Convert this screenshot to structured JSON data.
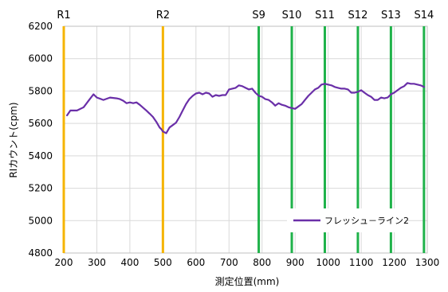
{
  "chart_data": {
    "type": "line",
    "xlabel": "測定位置(mm)",
    "ylabel": "RIカウント(cpm)",
    "xlim": [
      200,
      1300
    ],
    "ylim": [
      4800,
      6200
    ],
    "x_ticks": [
      "200",
      "300",
      "400",
      "500",
      "600",
      "700",
      "800",
      "900",
      "1000",
      "1100",
      "1200",
      "1300"
    ],
    "y_ticks": [
      "4800",
      "5000",
      "5200",
      "5400",
      "5600",
      "5800",
      "6000",
      "6200"
    ],
    "grid": true,
    "legend_position": "bottom-right",
    "colors": {
      "series": "#6a2fa8",
      "r_marker": "#f5b400",
      "s_marker": "#1fb24a",
      "grid": "#d9d9d9"
    },
    "markers": [
      {
        "label": "R1",
        "x": 200,
        "kind": "r"
      },
      {
        "label": "R2",
        "x": 500,
        "kind": "r"
      },
      {
        "label": "S9",
        "x": 790,
        "kind": "s"
      },
      {
        "label": "S10",
        "x": 890,
        "kind": "s"
      },
      {
        "label": "S11",
        "x": 990,
        "kind": "s"
      },
      {
        "label": "S12",
        "x": 1090,
        "kind": "s"
      },
      {
        "label": "S13",
        "x": 1190,
        "kind": "s"
      },
      {
        "label": "S14",
        "x": 1290,
        "kind": "s"
      }
    ],
    "series": [
      {
        "name": "フレッシュ－ライン2",
        "x": [
          210,
          220,
          240,
          260,
          275,
          290,
          300,
          320,
          340,
          360,
          370,
          380,
          390,
          400,
          410,
          420,
          430,
          450,
          460,
          470,
          480,
          490,
          495,
          500,
          510,
          520,
          530,
          540,
          550,
          560,
          570,
          580,
          590,
          600,
          610,
          620,
          630,
          640,
          650,
          660,
          670,
          680,
          690,
          700,
          710,
          720,
          730,
          740,
          750,
          760,
          770,
          780,
          790,
          800,
          810,
          820,
          830,
          840,
          850,
          860,
          870,
          880,
          890,
          900,
          910,
          920,
          930,
          940,
          950,
          960,
          970,
          980,
          990,
          1000,
          1010,
          1020,
          1030,
          1040,
          1050,
          1060,
          1070,
          1080,
          1090,
          1100,
          1110,
          1120,
          1130,
          1140,
          1150,
          1160,
          1170,
          1180,
          1190,
          1200,
          1210,
          1220,
          1230,
          1240,
          1250,
          1260,
          1270,
          1280,
          1290
        ],
        "values": [
          5650,
          5680,
          5680,
          5700,
          5740,
          5780,
          5760,
          5745,
          5760,
          5755,
          5750,
          5740,
          5725,
          5730,
          5725,
          5730,
          5715,
          5680,
          5660,
          5640,
          5610,
          5575,
          5565,
          5550,
          5540,
          5575,
          5590,
          5605,
          5640,
          5680,
          5720,
          5750,
          5770,
          5785,
          5790,
          5780,
          5790,
          5785,
          5765,
          5775,
          5770,
          5775,
          5775,
          5810,
          5815,
          5820,
          5835,
          5830,
          5820,
          5810,
          5815,
          5790,
          5770,
          5765,
          5750,
          5745,
          5730,
          5710,
          5725,
          5715,
          5710,
          5700,
          5695,
          5690,
          5705,
          5720,
          5745,
          5770,
          5790,
          5810,
          5820,
          5840,
          5845,
          5840,
          5835,
          5825,
          5820,
          5815,
          5815,
          5810,
          5790,
          5790,
          5795,
          5805,
          5790,
          5775,
          5765,
          5745,
          5745,
          5760,
          5755,
          5760,
          5780,
          5790,
          5805,
          5820,
          5830,
          5850,
          5845,
          5845,
          5840,
          5835,
          5825
        ]
      }
    ]
  }
}
